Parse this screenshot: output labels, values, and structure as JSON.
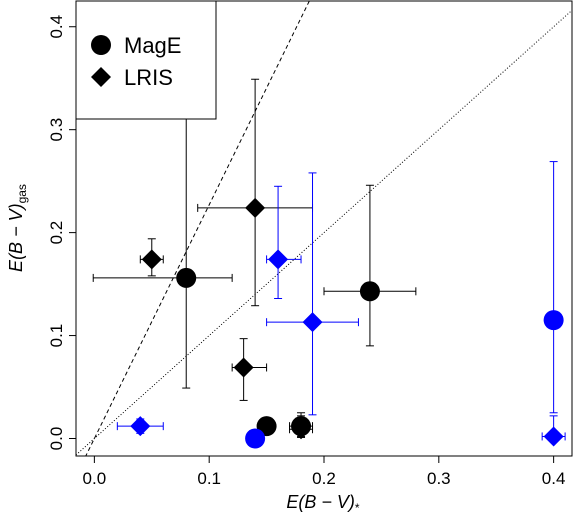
{
  "chart_data": {
    "type": "scatter",
    "x_label": "E(B − V)",
    "x_label_sub": "*",
    "y_label": "E(B − V)",
    "y_label_sub": "gas",
    "xlim": [
      -0.016,
      0.416
    ],
    "ylim": [
      -0.017,
      0.425
    ],
    "xticks": [
      {
        "value": 0,
        "label": "0.0"
      },
      {
        "value": 0.1,
        "label": "0.1"
      },
      {
        "value": 0.2,
        "label": "0.2"
      },
      {
        "value": 0.3,
        "label": "0.3"
      },
      {
        "value": 0.4,
        "label": "0.4"
      }
    ],
    "yticks": [
      {
        "value": 0,
        "label": "0.0"
      },
      {
        "value": 0.1,
        "label": "0.1"
      },
      {
        "value": 0.2,
        "label": "0.2"
      },
      {
        "value": 0.3,
        "label": "0.3"
      },
      {
        "value": 0.4,
        "label": "0.4"
      }
    ],
    "reference_lines": [
      {
        "slope": 2.27,
        "style": "dashed"
      },
      {
        "slope": 1,
        "style": "dotted"
      }
    ],
    "legend_position": "top-left",
    "series": [
      {
        "name": "MagE",
        "marker": "circle",
        "legend_color": "#000000",
        "colors": [
          "#000000",
          "#000000",
          "#000000",
          "#000000",
          "#0000ff",
          "#0000ff"
        ],
        "x": [
          0.08,
          0.24,
          0.15,
          0.18,
          0.14,
          0.4
        ],
        "y": [
          0.156,
          0.143,
          0.012,
          0.012,
          0.0,
          0.115
        ],
        "x_low": [
          -0.001,
          0.2,
          null,
          0.17,
          null,
          0.398
        ],
        "x_high": [
          0.12,
          0.28,
          null,
          0.19,
          null,
          0.402
        ],
        "y_low": [
          0.049,
          0.09,
          null,
          0.002,
          null,
          0.025
        ],
        "y_high": [
          0.311,
          0.246,
          null,
          0.025,
          null,
          0.269
        ]
      },
      {
        "name": "LRIS",
        "marker": "diamond",
        "legend_color": "#000000",
        "colors": [
          "#000000",
          "#000000",
          "#000000",
          "#000000",
          "#0000ff",
          "#0000ff",
          "#0000ff",
          "#0000ff"
        ],
        "x": [
          0.05,
          0.14,
          0.13,
          0.18,
          0.04,
          0.16,
          0.19,
          0.4
        ],
        "y": [
          0.174,
          0.224,
          0.069,
          0.009,
          0.012,
          0.174,
          0.113,
          0.002
        ],
        "x_low": [
          0.04,
          0.09,
          0.12,
          0.17,
          0.02,
          0.15,
          0.15,
          0.39
        ],
        "x_high": [
          0.06,
          0.19,
          0.15,
          0.19,
          0.06,
          0.18,
          0.23,
          0.41
        ],
        "y_low": [
          0.158,
          0.129,
          0.037,
          0.001,
          0.005,
          0.136,
          0.023,
          0.002
        ],
        "y_high": [
          0.194,
          0.349,
          0.097,
          0.022,
          0.019,
          0.245,
          0.258,
          0.022
        ]
      }
    ]
  }
}
